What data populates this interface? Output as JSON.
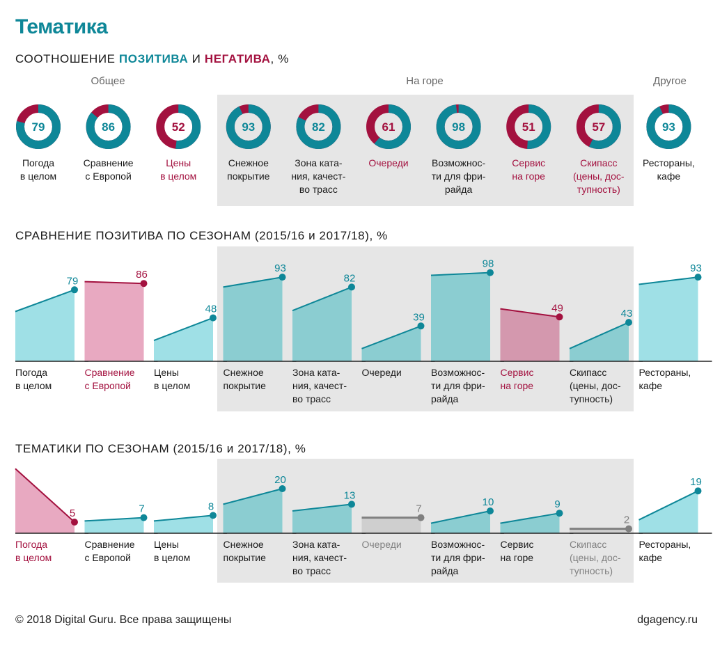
{
  "title": "Тематика",
  "section1": {
    "prefix": "СООТНОШЕНИЕ ",
    "pos": "ПОЗИТИВА",
    "mid": " И ",
    "neg": "НЕГАТИВА",
    "suffix": ", %"
  },
  "section2_title": "СРАВНЕНИЕ ПОЗИТИВА ПО СЕЗОНАМ (2015/16 и 2017/18), %",
  "section3_title": "ТЕМАТИКИ ПО СЕЗОНАМ (2015/16 и 2017/18), %",
  "groups": {
    "general": "Общее",
    "mountain": "На горе",
    "other": "Другое"
  },
  "footer": {
    "copyright": "© 2018 Digital Guru. Все права защищены",
    "site": "dgagency.ru"
  },
  "colors": {
    "teal": "#0e8798",
    "crimson": "#a3113f",
    "light_teal": "#9fe0e6",
    "mid_teal": "#8bcdd1",
    "light_pink": "#e8a9c1",
    "mid_pink": "#d498ae",
    "gray": "#808080",
    "panel": "#e6e6e6"
  },
  "chart_data": [
    {
      "type": "donut",
      "categories": [
        [
          "Погода",
          "в целом"
        ],
        [
          "Сравнение",
          "с Европой"
        ],
        [
          "Цены",
          "в целом"
        ],
        [
          "Снежное",
          "покрытие"
        ],
        [
          "Зона ката-",
          "ния, качест-",
          "во трасс"
        ],
        [
          "Очереди"
        ],
        [
          "Возможнос-",
          "ти для фри-",
          "райда"
        ],
        [
          "Сервис",
          "на горе"
        ],
        [
          "Скипасс",
          "(цены, дос-",
          "тупность)"
        ],
        [
          "Рестораны,",
          "кафе"
        ]
      ],
      "positive": [
        79,
        86,
        52,
        93,
        82,
        61,
        98,
        51,
        57,
        93
      ],
      "label_negative_highlight": [
        false,
        false,
        true,
        false,
        false,
        true,
        false,
        true,
        true,
        false
      ]
    },
    {
      "type": "area",
      "series": [
        {
          "name": "2015/16"
        },
        {
          "name": "2017/18"
        }
      ],
      "categories": [
        [
          "Погода",
          "в целом"
        ],
        [
          "Сравнение",
          "с Европой"
        ],
        [
          "Цены",
          "в целом"
        ],
        [
          "Снежное",
          "покрытие"
        ],
        [
          "Зона ката-",
          "ния, качест-",
          "во трасс"
        ],
        [
          "Очереди"
        ],
        [
          "Возможнос-",
          "ти для фри-",
          "райда"
        ],
        [
          "Сервис",
          "на горе"
        ],
        [
          "Скипасс",
          "(цены, дос-",
          "тупность)"
        ],
        [
          "Рестораны,",
          "кафе"
        ]
      ],
      "start": [
        55,
        88,
        23,
        82,
        56,
        14,
        95,
        58,
        14,
        85
      ],
      "end": [
        79,
        86,
        48,
        93,
        82,
        39,
        98,
        49,
        43,
        93
      ],
      "trend": [
        "up",
        "down",
        "up",
        "up",
        "up",
        "up",
        "up",
        "down",
        "up",
        "up"
      ],
      "ylim": [
        0,
        100
      ]
    },
    {
      "type": "area",
      "series": [
        {
          "name": "2015/16"
        },
        {
          "name": "2017/18"
        }
      ],
      "categories": [
        [
          "Погода",
          "в целом"
        ],
        [
          "Сравнение",
          "с Европой"
        ],
        [
          "Цены",
          "в целом"
        ],
        [
          "Снежное",
          "покрытие"
        ],
        [
          "Зона ката-",
          "ния, качест-",
          "во трасс"
        ],
        [
          "Очереди"
        ],
        [
          "Возможнос-",
          "ти для фри-",
          "райда"
        ],
        [
          "Сервис",
          "на горе"
        ],
        [
          "Скипасс",
          "(цены, дос-",
          "тупность)"
        ],
        [
          "Рестораны,",
          "кафе"
        ]
      ],
      "start": [
        29,
        5.5,
        5.5,
        13,
        10,
        7,
        4.5,
        4.5,
        2,
        6
      ],
      "end": [
        5,
        7,
        8,
        20,
        13,
        7,
        10,
        9,
        2,
        19
      ],
      "trend": [
        "down",
        "up",
        "up",
        "up",
        "up",
        "flat",
        "up",
        "up",
        "flat",
        "up"
      ],
      "ylim": [
        0,
        30
      ]
    }
  ]
}
